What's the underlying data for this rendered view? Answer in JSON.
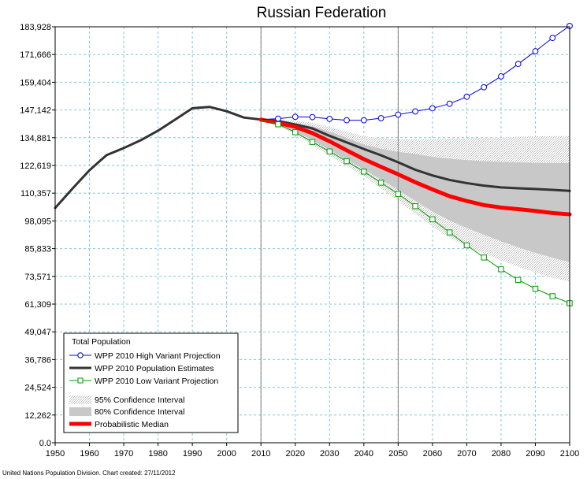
{
  "chart_data": {
    "type": "line",
    "title": "Russian Federation",
    "credit": "United Nations Population Division.  Chart created:  27/11/2012",
    "xlim": [
      1950,
      2100
    ],
    "ylim": [
      0,
      183928
    ],
    "x_ticks": [
      1950,
      1960,
      1970,
      1980,
      1990,
      2000,
      2010,
      2020,
      2030,
      2040,
      2050,
      2060,
      2070,
      2080,
      2090,
      2100
    ],
    "x_tick_labels": [
      "1950",
      "1960",
      "1970",
      "1980",
      "1990",
      "2000",
      "2010",
      "2020",
      "2030",
      "2040",
      "2050",
      "2060",
      "2070",
      "2080",
      "2090",
      "2100"
    ],
    "y_ticks": [
      0,
      12262,
      24524,
      36786,
      49047,
      61309,
      73571,
      85833,
      98095,
      110357,
      122619,
      134881,
      147142,
      159404,
      171666,
      183928
    ],
    "y_tick_labels": [
      "0.0",
      "12,262",
      "24,524",
      "36,786",
      "49,047",
      "61,309",
      "73,571",
      "85,833",
      "98,095",
      "110,357",
      "122,619",
      "134,881",
      "147,142",
      "159,404",
      "171,666",
      "183,928"
    ],
    "grid": true,
    "vertical_reference_lines": [
      2010,
      2050
    ],
    "legend": {
      "title": "Total Population",
      "position": "bottom-left",
      "items": [
        "WPP 2010 High Variant Projection",
        "WPP 2010 Population Estimates",
        "WPP 2010 Low Variant Projection",
        "95% Confidence Interval",
        "80% Confidence Interval",
        "Probabilistic Median"
      ]
    },
    "series": [
      {
        "name": "WPP 2010 Population Estimates",
        "role": "estimates",
        "color": "#333333",
        "x": [
          1950,
          1955,
          1960,
          1965,
          1970,
          1975,
          1980,
          1985,
          1990,
          1995,
          2000,
          2005,
          2010,
          2015,
          2020,
          2025,
          2030,
          2035,
          2040,
          2045,
          2050,
          2055,
          2060,
          2065,
          2070,
          2075,
          2080,
          2085,
          2090,
          2095,
          2100
        ],
        "values": [
          103800,
          112300,
          120500,
          127200,
          130300,
          133800,
          138000,
          142900,
          147900,
          148500,
          146600,
          143800,
          142900,
          142300,
          140700,
          139000,
          135700,
          132800,
          129900,
          127100,
          124000,
          120700,
          118200,
          116200,
          114800,
          113700,
          112900,
          112500,
          112200,
          111800,
          111400
        ]
      },
      {
        "name": "Probabilistic Median",
        "role": "median",
        "color": "#ff0000",
        "x": [
          2010,
          2015,
          2020,
          2025,
          2030,
          2035,
          2040,
          2045,
          2050,
          2055,
          2060,
          2065,
          2070,
          2075,
          2080,
          2085,
          2090,
          2095,
          2100
        ],
        "values": [
          142900,
          141400,
          139700,
          136900,
          133300,
          129300,
          125400,
          122000,
          118700,
          115200,
          112000,
          109000,
          106900,
          105100,
          104000,
          103300,
          102500,
          101600,
          101000
        ]
      },
      {
        "name": "WPP 2010 High Variant Projection",
        "role": "high",
        "color": "#0000dd",
        "x": [
          2010,
          2015,
          2020,
          2025,
          2030,
          2035,
          2040,
          2045,
          2050,
          2055,
          2060,
          2065,
          2070,
          2075,
          2080,
          2085,
          2090,
          2095,
          2100
        ],
        "values": [
          142900,
          143300,
          144100,
          144000,
          143200,
          142600,
          142600,
          143500,
          145100,
          146500,
          147900,
          149900,
          153000,
          157200,
          162000,
          167500,
          173100,
          179000,
          184300
        ]
      },
      {
        "name": "WPP 2010 Low Variant Projection",
        "role": "low",
        "color": "#009900",
        "x": [
          2010,
          2015,
          2020,
          2025,
          2030,
          2035,
          2040,
          2045,
          2050,
          2055,
          2060,
          2065,
          2070,
          2075,
          2080,
          2085,
          2090,
          2095,
          2100
        ],
        "values": [
          142900,
          140800,
          137300,
          133000,
          128800,
          124500,
          119900,
          115000,
          110000,
          104600,
          98800,
          93000,
          87300,
          81900,
          76700,
          72000,
          68100,
          64800,
          61700
        ]
      }
    ],
    "bands": [
      {
        "name": "95% Confidence Interval",
        "x": [
          2010,
          2015,
          2020,
          2025,
          2030,
          2035,
          2040,
          2045,
          2050,
          2055,
          2060,
          2065,
          2070,
          2075,
          2080,
          2085,
          2090,
          2095,
          2100
        ],
        "lower": [
          142900,
          140100,
          136300,
          131700,
          126900,
          122400,
          117800,
          112500,
          107000,
          101300,
          95600,
          90600,
          86800,
          83600,
          80700,
          77800,
          75200,
          73000,
          71200
        ],
        "upper": [
          142900,
          142500,
          142400,
          141500,
          139700,
          137700,
          135500,
          134700,
          134200,
          134100,
          134300,
          134500,
          134600,
          134800,
          135000,
          135300,
          135500,
          135600,
          135700
        ]
      },
      {
        "name": "80% Confidence Interval",
        "x": [
          2010,
          2015,
          2020,
          2025,
          2030,
          2035,
          2040,
          2045,
          2050,
          2055,
          2060,
          2065,
          2070,
          2075,
          2080,
          2085,
          2090,
          2095,
          2100
        ],
        "lower": [
          142900,
          140600,
          137600,
          133800,
          129400,
          125200,
          120900,
          116400,
          111800,
          107000,
          102300,
          98200,
          95000,
          92000,
          89100,
          86400,
          84000,
          81800,
          79900
        ],
        "upper": [
          142900,
          142100,
          141500,
          140000,
          137600,
          134800,
          131900,
          130000,
          128600,
          127700,
          126400,
          125600,
          125000,
          124500,
          124200,
          124000,
          123800,
          123700,
          123600
        ]
      }
    ]
  }
}
